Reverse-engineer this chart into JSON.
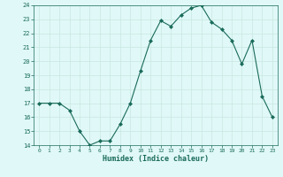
{
  "x": [
    0,
    1,
    2,
    3,
    4,
    5,
    6,
    7,
    8,
    9,
    10,
    11,
    12,
    13,
    14,
    15,
    16,
    17,
    18,
    19,
    20,
    21,
    22,
    23
  ],
  "y": [
    17,
    17,
    17,
    16.5,
    15,
    14,
    14.3,
    14.3,
    15.5,
    17,
    19.3,
    21.5,
    22.9,
    22.5,
    23.3,
    23.8,
    24,
    22.8,
    22.3,
    21.5,
    19.8,
    21.5,
    17.5,
    16
  ],
  "ylim": [
    14,
    24
  ],
  "xlim": [
    -0.5,
    23.5
  ],
  "yticks": [
    14,
    15,
    16,
    17,
    18,
    19,
    20,
    21,
    22,
    23,
    24
  ],
  "xticks": [
    0,
    1,
    2,
    3,
    4,
    5,
    6,
    7,
    8,
    9,
    10,
    11,
    12,
    13,
    14,
    15,
    16,
    17,
    18,
    19,
    20,
    21,
    22,
    23
  ],
  "xlabel": "Humidex (Indice chaleur)",
  "line_color": "#1a6b5a",
  "marker": "D",
  "marker_size": 2,
  "bg_color": "#e0f8f8",
  "grid_color": "#c8e8e0",
  "title": ""
}
